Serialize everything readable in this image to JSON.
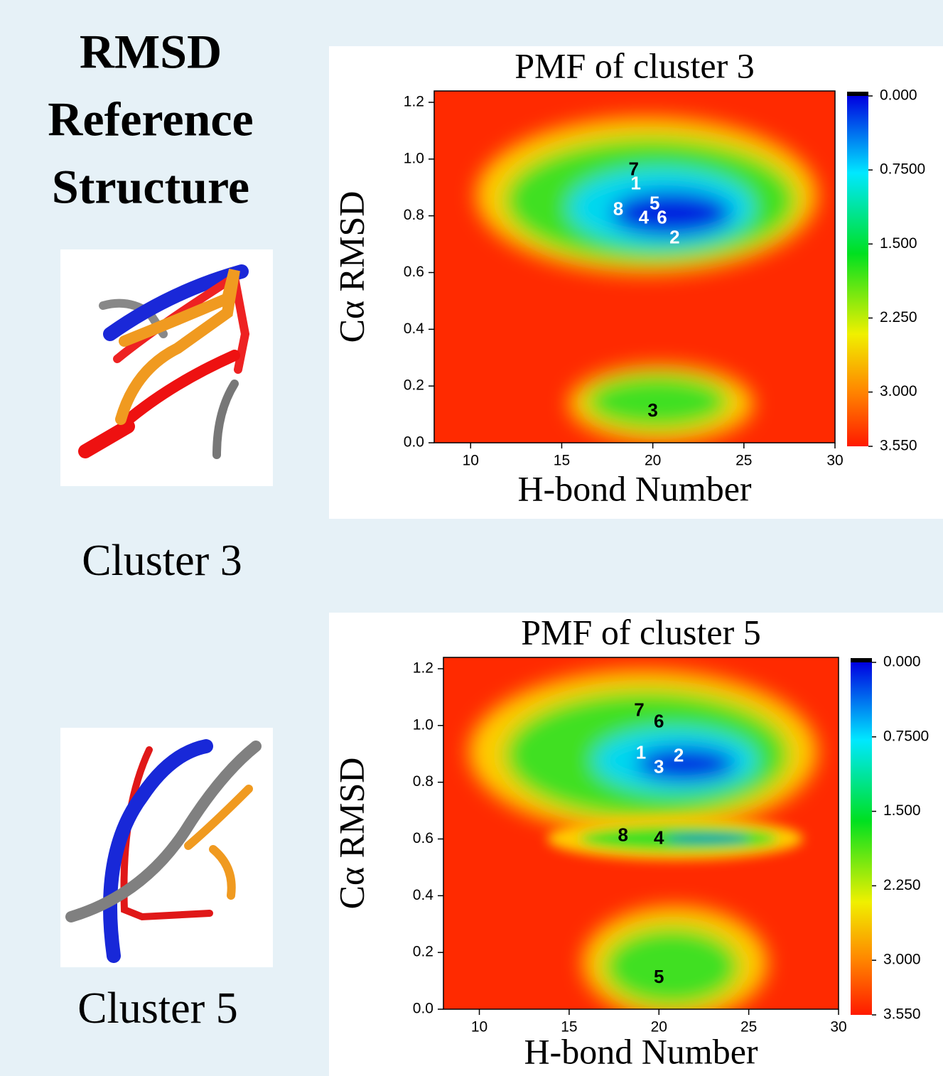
{
  "left_panel": {
    "heading": [
      "RMSD",
      "Reference",
      "Structure"
    ],
    "captions": [
      "Cluster 3",
      "Cluster 5"
    ]
  },
  "chart_data": [
    {
      "type": "contour",
      "title": "PMF of cluster 3",
      "x_label": "H-bond Number",
      "y_label": "Cα RMSD",
      "xlim": [
        8,
        30
      ],
      "ylim": [
        0,
        1.24
      ],
      "xticks": [
        10,
        15,
        20,
        25,
        30
      ],
      "yticks": [
        {
          "value": 0,
          "label": "0.0"
        },
        0.2,
        0.4,
        0.6,
        0.8,
        {
          "value": 1,
          "label": "1.0"
        },
        1.2
      ],
      "colorbar": {
        "zlim": [
          0,
          3.55
        ],
        "ticks": [
          {
            "value": 0,
            "label": "0.000"
          },
          {
            "value": 0.75,
            "label": "0.7500"
          },
          {
            "value": 1.5,
            "label": "1.500"
          },
          {
            "value": 2.25,
            "label": "2.250"
          },
          {
            "value": 3,
            "label": "3.000"
          },
          {
            "value": 3.55,
            "label": "3.550"
          }
        ]
      },
      "annotations": [
        {
          "label": "7",
          "x": 18.95,
          "y": 0.96,
          "color": "#000000"
        },
        {
          "label": "1",
          "x": 19.07,
          "y": 0.91,
          "color": "#ffffff"
        },
        {
          "label": "8",
          "x": 18.1,
          "y": 0.82,
          "color": "#ffffff"
        },
        {
          "label": "5",
          "x": 20.1,
          "y": 0.84,
          "color": "#ffffff"
        },
        {
          "label": "4",
          "x": 19.5,
          "y": 0.79,
          "color": "#ffffff"
        },
        {
          "label": "6",
          "x": 20.5,
          "y": 0.79,
          "color": "#ffffff"
        },
        {
          "label": "2",
          "x": 21.2,
          "y": 0.72,
          "color": "#ffffff"
        },
        {
          "label": "3",
          "x": 20.0,
          "y": 0.11,
          "color": "#000000"
        }
      ]
    },
    {
      "type": "contour",
      "title": "PMF of cluster 5",
      "x_label": "H-bond Number",
      "y_label": "Cα RMSD",
      "xlim": [
        8,
        30
      ],
      "ylim": [
        0,
        1.24
      ],
      "xticks": [
        10,
        15,
        20,
        25,
        30
      ],
      "yticks": [
        {
          "value": 0,
          "label": "0.0"
        },
        0.2,
        0.4,
        0.6,
        0.8,
        {
          "value": 1,
          "label": "1.0"
        },
        1.2
      ],
      "colorbar": {
        "zlim": [
          0,
          3.55
        ],
        "ticks": [
          {
            "value": 0,
            "label": "0.000"
          },
          {
            "value": 0.75,
            "label": "0.7500"
          },
          {
            "value": 1.5,
            "label": "1.500"
          },
          {
            "value": 2.25,
            "label": "2.250"
          },
          {
            "value": 3,
            "label": "3.000"
          },
          {
            "value": 3.55,
            "label": "3.550"
          }
        ]
      },
      "annotations": [
        {
          "label": "7",
          "x": 18.9,
          "y": 1.05,
          "color": "#000000"
        },
        {
          "label": "6",
          "x": 20.0,
          "y": 1.01,
          "color": "#000000"
        },
        {
          "label": "1",
          "x": 19.0,
          "y": 0.9,
          "color": "#ffffff"
        },
        {
          "label": "2",
          "x": 21.1,
          "y": 0.89,
          "color": "#ffffff"
        },
        {
          "label": "3",
          "x": 20.0,
          "y": 0.85,
          "color": "#ffffff"
        },
        {
          "label": "8",
          "x": 18.0,
          "y": 0.61,
          "color": "#000000"
        },
        {
          "label": "4",
          "x": 20.0,
          "y": 0.6,
          "color": "#000000"
        },
        {
          "label": "5",
          "x": 20.0,
          "y": 0.11,
          "color": "#000000"
        }
      ]
    }
  ]
}
